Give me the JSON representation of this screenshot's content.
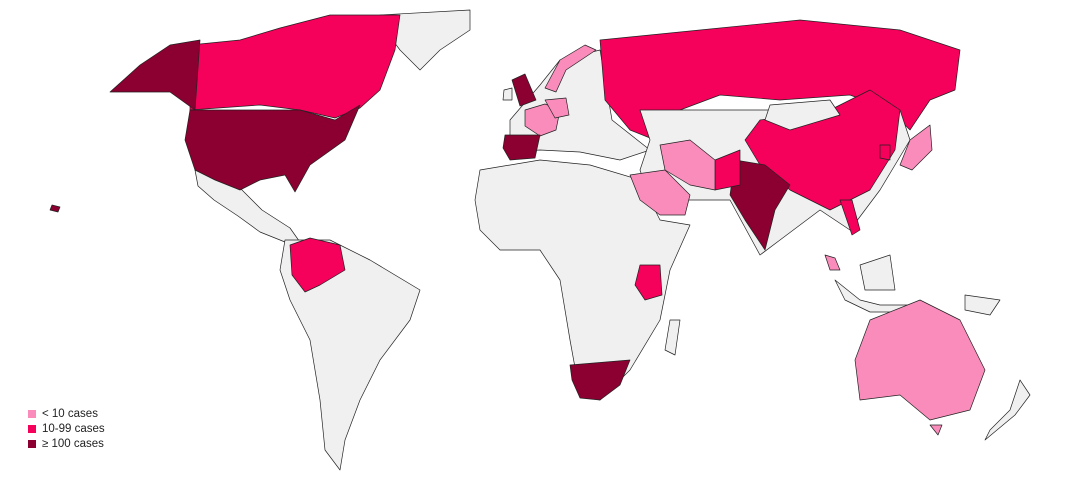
{
  "colors": {
    "none": "#f0f0f0",
    "low": "#f98cbb",
    "mid": "#f5005a",
    "high": "#8b0030",
    "border": "#222222"
  },
  "legend": [
    {
      "key": "low",
      "label": "< 10 cases"
    },
    {
      "key": "mid",
      "label": "10-99 cases"
    },
    {
      "key": "high",
      "label": "≥ 100 cases"
    }
  ],
  "regions": [
    {
      "name": "Greenland",
      "category": "none"
    },
    {
      "name": "Mexico and Central America",
      "category": "none"
    },
    {
      "name": "Canada",
      "category": "mid"
    },
    {
      "name": "Alaska",
      "category": "high"
    },
    {
      "name": "United States",
      "category": "high"
    },
    {
      "name": "Hawaii",
      "category": "high"
    },
    {
      "name": "South America",
      "category": "none"
    },
    {
      "name": "Venezuela and Colombia",
      "category": "mid"
    },
    {
      "name": "Africa",
      "category": "none"
    },
    {
      "name": "South Africa",
      "category": "high"
    },
    {
      "name": "Kenya",
      "category": "mid"
    },
    {
      "name": "Madagascar",
      "category": "none"
    },
    {
      "name": "Europe",
      "category": "none"
    },
    {
      "name": "Norway",
      "category": "low"
    },
    {
      "name": "United Kingdom",
      "category": "high"
    },
    {
      "name": "Ireland",
      "category": "none"
    },
    {
      "name": "France",
      "category": "low"
    },
    {
      "name": "Germany",
      "category": "low"
    },
    {
      "name": "Spain",
      "category": "high"
    },
    {
      "name": "Russia",
      "category": "mid"
    },
    {
      "name": "Asia",
      "category": "none"
    },
    {
      "name": "China",
      "category": "mid"
    },
    {
      "name": "Mongolia",
      "category": "none"
    },
    {
      "name": "India",
      "category": "high"
    },
    {
      "name": "Pakistan",
      "category": "mid"
    },
    {
      "name": "Iran",
      "category": "low"
    },
    {
      "name": "Saudi Arabia",
      "category": "low"
    },
    {
      "name": "Japan",
      "category": "low"
    },
    {
      "name": "South Korea",
      "category": "mid"
    },
    {
      "name": "Vietnam",
      "category": "mid"
    },
    {
      "name": "Malaysia",
      "category": "low"
    },
    {
      "name": "Borneo",
      "category": "none"
    },
    {
      "name": "Indonesia",
      "category": "none"
    },
    {
      "name": "Papua New Guinea",
      "category": "none"
    },
    {
      "name": "Australia",
      "category": "low"
    },
    {
      "name": "Tasmania",
      "category": "low"
    },
    {
      "name": "New Zealand",
      "category": "none"
    }
  ]
}
